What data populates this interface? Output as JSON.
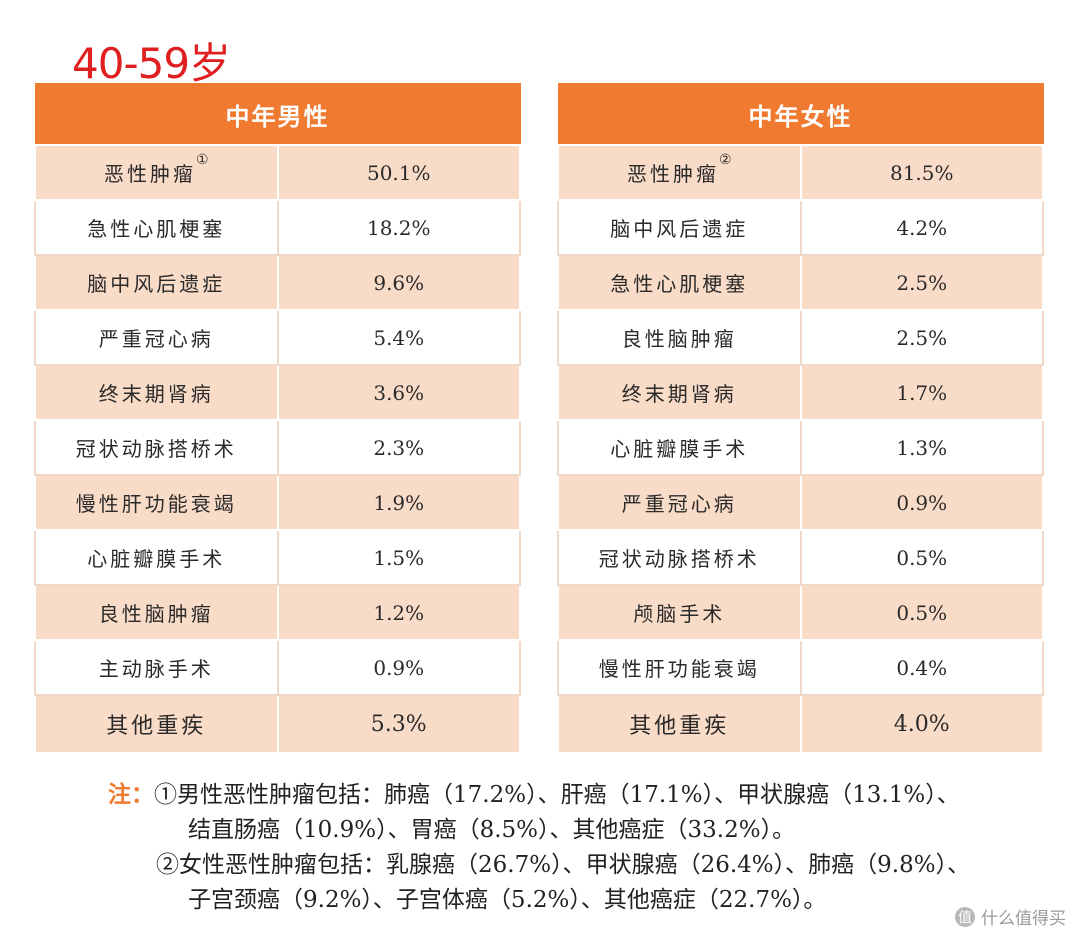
{
  "title": "40-59岁",
  "male_table": {
    "header": "中年男性",
    "rows": [
      {
        "name": "恶性肿瘤",
        "sup": "①",
        "value": "50.1%"
      },
      {
        "name": "急性心肌梗塞",
        "value": "18.2%"
      },
      {
        "name": "脑中风后遗症",
        "value": "9.6%"
      },
      {
        "name": "严重冠心病",
        "value": "5.4%"
      },
      {
        "name": "终末期肾病",
        "value": "3.6%"
      },
      {
        "name": "冠状动脉搭桥术",
        "value": "2.3%"
      },
      {
        "name": "慢性肝功能衰竭",
        "value": "1.9%"
      },
      {
        "name": "心脏瓣膜手术",
        "value": "1.5%"
      },
      {
        "name": "良性脑肿瘤",
        "value": "1.2%"
      },
      {
        "name": "主动脉手术",
        "value": "0.9%"
      },
      {
        "name": "其他重疾",
        "value": "5.3%"
      }
    ]
  },
  "female_table": {
    "header": "中年女性",
    "rows": [
      {
        "name": "恶性肿瘤",
        "sup": "②",
        "value": "81.5%"
      },
      {
        "name": "脑中风后遗症",
        "value": "4.2%"
      },
      {
        "name": "急性心肌梗塞",
        "value": "2.5%"
      },
      {
        "name": "良性脑肿瘤",
        "value": "2.5%"
      },
      {
        "name": "终末期肾病",
        "value": "1.7%"
      },
      {
        "name": "心脏瓣膜手术",
        "value": "1.3%"
      },
      {
        "name": "严重冠心病",
        "value": "0.9%"
      },
      {
        "name": "冠状动脉搭桥术",
        "value": "0.5%"
      },
      {
        "name": "颅脑手术",
        "value": "0.5%"
      },
      {
        "name": "慢性肝功能衰竭",
        "value": "0.4%"
      },
      {
        "name": "其他重疾",
        "value": "4.0%"
      }
    ]
  },
  "notes": {
    "label": "注：",
    "note1_line1": "①男性恶性肿瘤包括：肺癌（17.2%）、肝癌（17.1%）、甲状腺癌（13.1%）、",
    "note1_line2": "结直肠癌（10.9%）、胃癌（8.5%）、其他癌症（33.2%）。",
    "note2_line1": "②女性恶性肿瘤包括：乳腺癌（26.7%）、甲状腺癌（26.4%）、肺癌（9.8%）、",
    "note2_line2": "子宫颈癌（9.2%）、子宫体癌（5.2%）、其他癌症（22.7%）。"
  },
  "watermark": {
    "logo": "值",
    "text": "什么值得买"
  }
}
